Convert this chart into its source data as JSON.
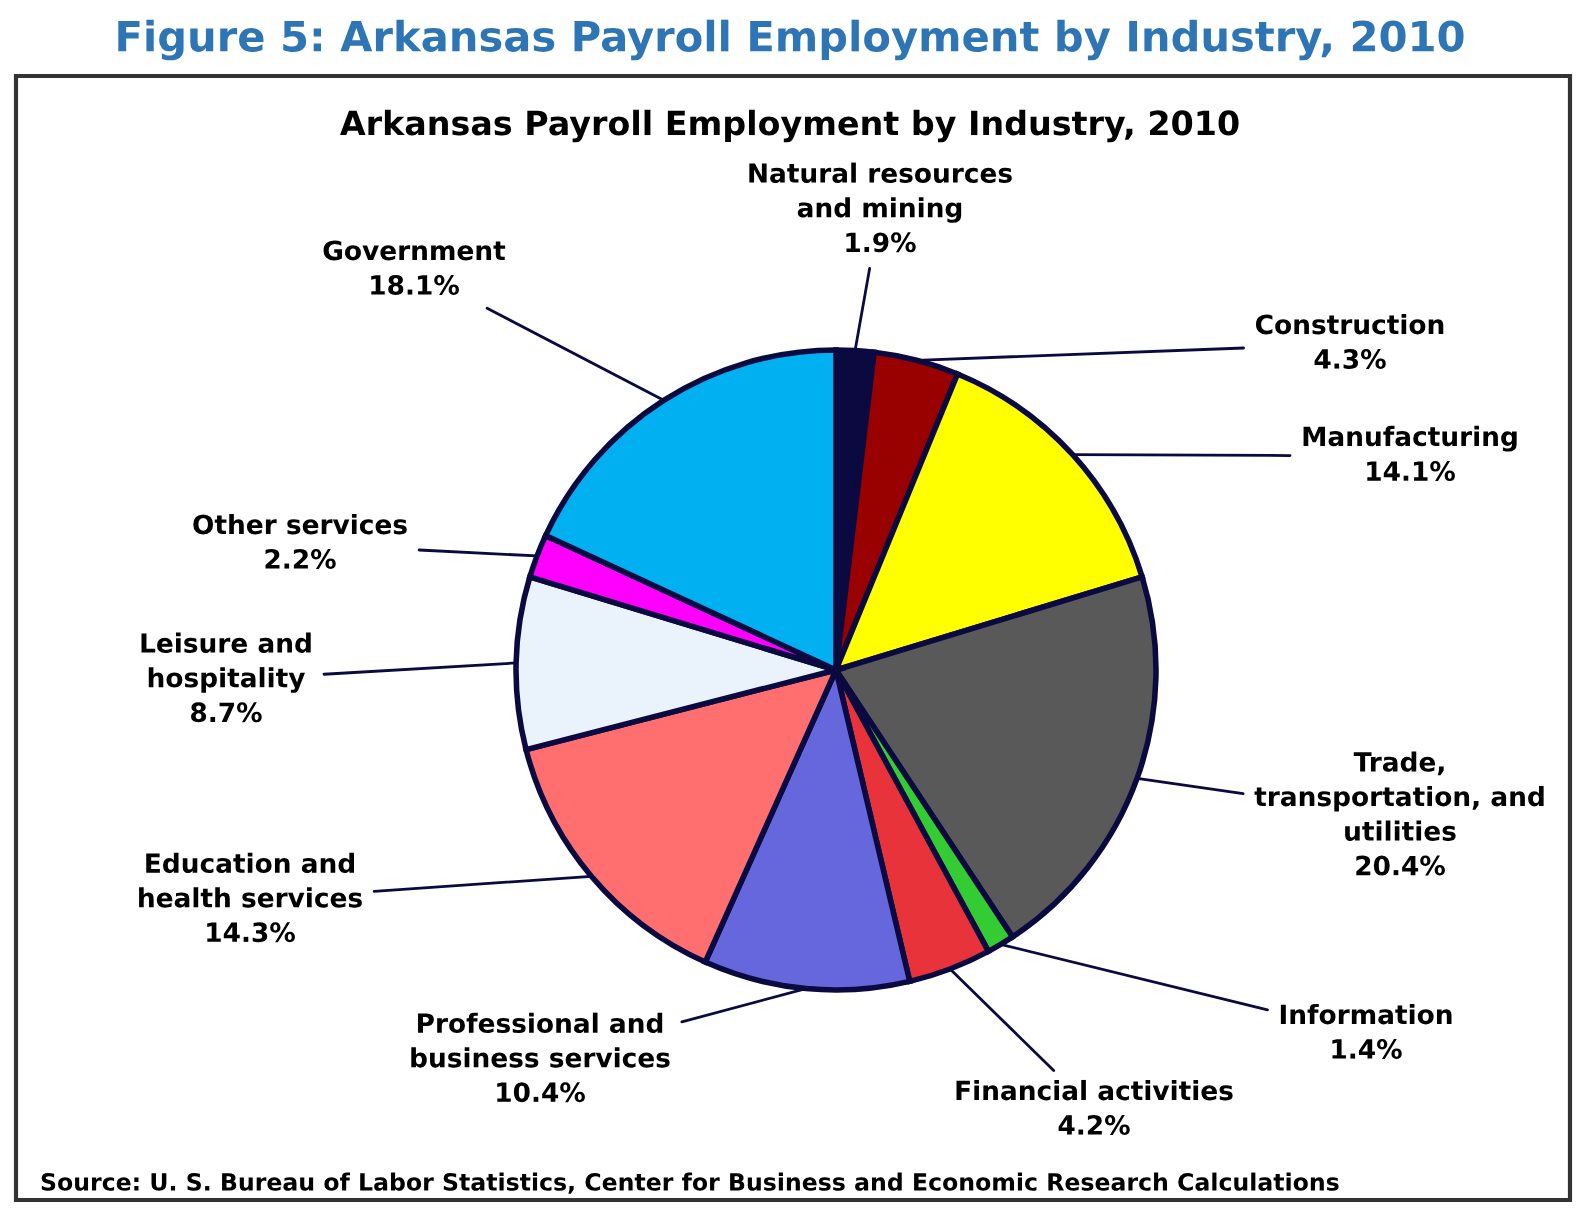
{
  "chart_data": {
    "type": "pie",
    "title": "Figure 5: Arkansas Payroll Employment by Industry, 2010",
    "subtitle": "Arkansas Payroll Employment by Industry, 2010",
    "categories": [
      "Natural resources and mining",
      "Construction",
      "Manufacturing",
      "Trade, transportation, and utilities",
      "Information",
      "Financial activities",
      "Professional and business services",
      "Education and health services",
      "Leisure and hospitality",
      "Other services",
      "Government"
    ],
    "values": [
      1.9,
      4.3,
      14.1,
      20.4,
      1.4,
      4.2,
      10.4,
      14.3,
      8.7,
      2.2,
      18.1
    ],
    "colors": [
      "#0a0a40",
      "#990000",
      "#ffff00",
      "#595959",
      "#33cc33",
      "#e8333a",
      "#6666dd",
      "#ff6f6f",
      "#eaf2fc",
      "#ff00ff",
      "#00b0f0"
    ],
    "value_labels": [
      "1.9%",
      "4.3%",
      "14.1%",
      "20.4%",
      "1.4%",
      "4.2%",
      "10.4%",
      "14.3%",
      "8.7%",
      "2.2%",
      "18.1%"
    ],
    "annotations": [
      "Source: U. S. Bureau of Labor Statistics, Center for Business and Economic Research Calculations"
    ]
  }
}
